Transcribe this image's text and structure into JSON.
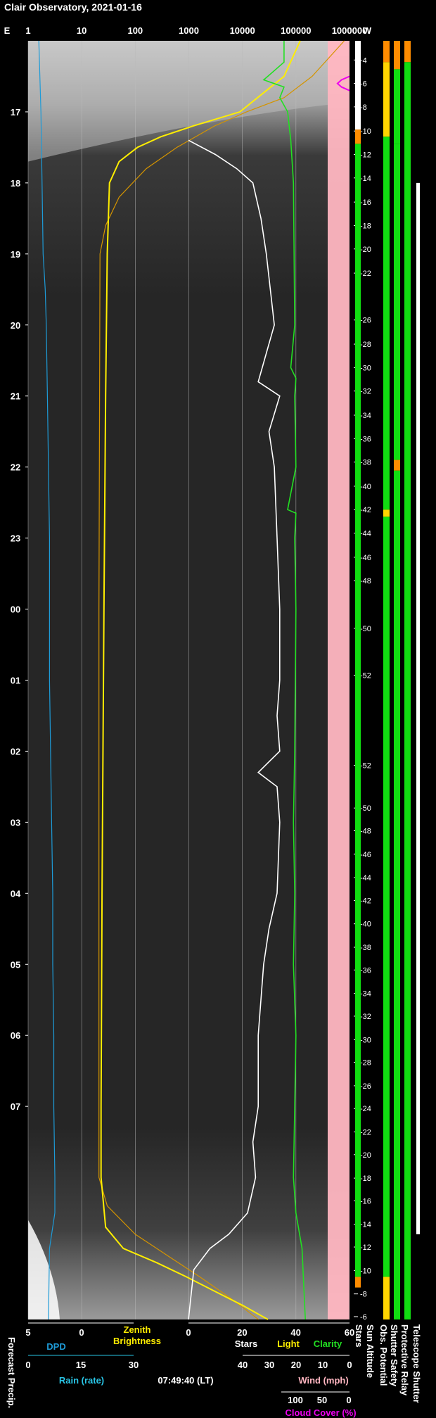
{
  "title": "Clair Observatory, 2021-01-16",
  "colors": {
    "dpd": "#1e9bd7",
    "rain": "#29c5e6",
    "brightness": "#ffee00",
    "light": "#ffee00",
    "clarity": "#22e022",
    "stars": "#ffffff",
    "wind": "#ffb6c1",
    "cloud": "#ee00ee",
    "green": "#11dd11",
    "orange": "#ff8c00",
    "yellow": "#ffd400"
  },
  "chart_data": {
    "type": "line",
    "compass": {
      "east": "E",
      "west": "W"
    },
    "top_axis": {
      "scale": "log",
      "ticks": [
        "1",
        "10",
        "100",
        "1000",
        "10000",
        "100000",
        "1000000"
      ]
    },
    "time_labels": [
      "17",
      "18",
      "19",
      "20",
      "21",
      "22",
      "23",
      "00",
      "01",
      "02",
      "03",
      "04",
      "05",
      "06",
      "07"
    ],
    "sun_altitude_ticks": [
      {
        "t": 16.27,
        "v": "-4"
      },
      {
        "t": 16.6,
        "v": "-6"
      },
      {
        "t": 16.93,
        "v": "-8"
      },
      {
        "t": 17.27,
        "v": "-10"
      },
      {
        "t": 17.6,
        "v": "-12"
      },
      {
        "t": 17.93,
        "v": "-14"
      },
      {
        "t": 18.27,
        "v": "-16"
      },
      {
        "t": 18.6,
        "v": "-18"
      },
      {
        "t": 18.93,
        "v": "-20"
      },
      {
        "t": 19.27,
        "v": "-22"
      },
      {
        "t": 19.93,
        "v": "-26"
      },
      {
        "t": 20.27,
        "v": "-28"
      },
      {
        "t": 20.6,
        "v": "-30"
      },
      {
        "t": 20.93,
        "v": "-32"
      },
      {
        "t": 21.27,
        "v": "-34"
      },
      {
        "t": 21.6,
        "v": "-36"
      },
      {
        "t": 21.93,
        "v": "-38"
      },
      {
        "t": 22.27,
        "v": "-40"
      },
      {
        "t": 22.6,
        "v": "-42"
      },
      {
        "t": 22.93,
        "v": "-44"
      },
      {
        "t": 23.27,
        "v": "-46"
      },
      {
        "t": 23.6,
        "v": "-48"
      },
      {
        "t": 24.27,
        "v": "-50"
      },
      {
        "t": 24.93,
        "v": "-52"
      },
      {
        "t": 26.2,
        "v": "-52"
      },
      {
        "t": 26.8,
        "v": "-50"
      },
      {
        "t": 27.12,
        "v": "-48"
      },
      {
        "t": 27.45,
        "v": "-46"
      },
      {
        "t": 27.78,
        "v": "-44"
      },
      {
        "t": 28.1,
        "v": "-42"
      },
      {
        "t": 28.43,
        "v": "-40"
      },
      {
        "t": 28.76,
        "v": "-38"
      },
      {
        "t": 29.08,
        "v": "-36"
      },
      {
        "t": 29.41,
        "v": "-34"
      },
      {
        "t": 29.73,
        "v": "-32"
      },
      {
        "t": 30.06,
        "v": "-30"
      },
      {
        "t": 30.38,
        "v": "-28"
      },
      {
        "t": 30.71,
        "v": "-26"
      },
      {
        "t": 31.03,
        "v": "-24"
      },
      {
        "t": 31.36,
        "v": "-22"
      },
      {
        "t": 31.68,
        "v": "-20"
      },
      {
        "t": 32.01,
        "v": "-18"
      },
      {
        "t": 32.33,
        "v": "-16"
      },
      {
        "t": 32.66,
        "v": "-14"
      },
      {
        "t": 32.98,
        "v": "-12"
      },
      {
        "t": 33.31,
        "v": "-10"
      },
      {
        "t": 33.64,
        "v": "-8"
      },
      {
        "t": 33.96,
        "v": "-6"
      }
    ],
    "time_range": [
      16.0,
      34.0
    ],
    "series": [
      {
        "name": "DPD",
        "unit": "scale 5..0",
        "t": [
          16.0,
          17.0,
          18.0,
          19.0,
          19.5,
          20.0,
          21.0,
          22.0,
          23.0,
          24.0,
          25.0,
          26.0,
          27.0,
          28.0,
          29.0,
          30.0,
          31.0,
          32.0,
          32.5,
          33.0,
          34.0
        ],
        "v": [
          4.0,
          3.8,
          3.7,
          3.6,
          3.4,
          3.3,
          3.2,
          3.1,
          3.0,
          3.0,
          3.0,
          2.9,
          2.8,
          2.7,
          2.7,
          2.6,
          2.6,
          2.5,
          2.5,
          3.0,
          3.1
        ]
      },
      {
        "name": "Zenith Brightness",
        "unit": "log",
        "t": [
          16.0,
          16.5,
          17.0,
          17.2,
          17.35,
          17.5,
          17.7,
          18.0,
          19.0,
          21.0,
          24.0,
          28.0,
          31.0,
          32.0,
          32.7,
          33.0,
          33.2,
          33.4,
          33.6,
          33.8,
          34.0
        ],
        "v": [
          120000,
          60000,
          9000,
          1200,
          300,
          110,
          50,
          33,
          30,
          28,
          26,
          24,
          23,
          23,
          28,
          60,
          250,
          900,
          3000,
          10000,
          30000
        ]
      },
      {
        "name": "Light",
        "unit": "log",
        "t": [
          16.0,
          16.5,
          16.8,
          17.0,
          17.2,
          17.5,
          17.8,
          18.2,
          18.6,
          19.0,
          24.0,
          32.0,
          32.4,
          32.8,
          33.1,
          33.4,
          33.7,
          34.0
        ],
        "v": [
          800000,
          200000,
          60000,
          12000,
          3000,
          600,
          160,
          50,
          28,
          22,
          21,
          21,
          30,
          100,
          400,
          1600,
          6000,
          20000
        ]
      },
      {
        "name": "Clarity",
        "unit": "log",
        "t": [
          16.0,
          16.3,
          16.55,
          16.65,
          16.8,
          17.0,
          17.4,
          18.0,
          20.0,
          20.6,
          20.75,
          21.0,
          22.0,
          22.6,
          22.65,
          23.0,
          24.0,
          26.0,
          27.0,
          28.0,
          29.0,
          30.0,
          31.0,
          32.0,
          32.5,
          33.0,
          34.0
        ],
        "v": [
          60000,
          60000,
          25000,
          60000,
          50000,
          70000,
          80000,
          90000,
          95000,
          80000,
          100000,
          95000,
          100000,
          70000,
          100000,
          95000,
          100000,
          95000,
          90000,
          95000,
          90000,
          100000,
          95000,
          90000,
          100000,
          130000,
          150000
        ]
      },
      {
        "name": "Stars",
        "unit": "0..60",
        "t": [
          16.0,
          17.4,
          17.6,
          17.8,
          18.0,
          18.5,
          19.0,
          20.0,
          20.8,
          21.0,
          21.5,
          22.0,
          23.0,
          24.0,
          25.0,
          25.5,
          26.0,
          26.3,
          26.5,
          27.0,
          28.0,
          28.5,
          29.0,
          30.0,
          31.0,
          31.5,
          32.0,
          32.5,
          32.8,
          33.0,
          33.3,
          34.0
        ],
        "v": [
          null,
          0,
          10,
          18,
          24,
          27,
          29,
          32,
          26,
          34,
          30,
          32,
          33,
          34,
          34,
          33,
          34,
          26,
          33,
          34,
          33,
          30,
          28,
          26,
          26,
          24,
          25,
          22,
          15,
          8,
          2,
          0
        ]
      },
      {
        "name": "Wind",
        "unit": "mph 40..0",
        "t": [
          16.0,
          17.0,
          17.5,
          18.0,
          20.0,
          22.0,
          24.0,
          26.0,
          28.0,
          30.0,
          32.0,
          34.0
        ],
        "v": [
          15,
          12,
          8,
          5,
          4,
          3,
          2,
          2,
          3,
          4,
          5,
          6
        ]
      },
      {
        "name": "Cloud Cover",
        "unit": "% 100..0",
        "t": [
          16.5,
          16.55,
          16.6,
          16.65,
          16.7
        ],
        "v": [
          0,
          20,
          30,
          20,
          0
        ]
      }
    ],
    "status_bars": [
      {
        "name": "Stars",
        "segments": [
          {
            "from": 16.0,
            "to": 17.25,
            "color": "white"
          },
          {
            "from": 17.25,
            "to": 17.45,
            "color": "orange"
          },
          {
            "from": 17.45,
            "to": 33.4,
            "color": "green"
          },
          {
            "from": 33.4,
            "to": 33.55,
            "color": "orange"
          }
        ]
      },
      {
        "name": "Obs. Potential",
        "segments": [
          {
            "from": 16.0,
            "to": 16.3,
            "color": "orange"
          },
          {
            "from": 16.3,
            "to": 17.35,
            "color": "yellow"
          },
          {
            "from": 17.35,
            "to": 22.6,
            "color": "green"
          },
          {
            "from": 22.6,
            "to": 22.7,
            "color": "yellow"
          },
          {
            "from": 22.7,
            "to": 33.4,
            "color": "green"
          },
          {
            "from": 33.4,
            "to": 34.0,
            "color": "yellow"
          }
        ]
      },
      {
        "name": "Shutter Safety",
        "segments": [
          {
            "from": 16.0,
            "to": 16.4,
            "color": "orange"
          },
          {
            "from": 16.4,
            "to": 17.45,
            "color": "green"
          },
          {
            "from": 17.45,
            "to": 21.9,
            "color": "green"
          },
          {
            "from": 21.9,
            "to": 22.05,
            "color": "orange"
          },
          {
            "from": 22.05,
            "to": 34.0,
            "color": "green"
          }
        ]
      },
      {
        "name": "Protective Relay",
        "segments": [
          {
            "from": 16.0,
            "to": 16.3,
            "color": "orange"
          },
          {
            "from": 16.3,
            "to": 34.0,
            "color": "green"
          }
        ]
      },
      {
        "name": "Telescope Shutter",
        "segments": [
          {
            "from": 18.0,
            "to": 32.8,
            "color": "white"
          }
        ]
      }
    ],
    "bottom_scales": {
      "forecast_precip_label": "Forecast Precip.",
      "dpd": {
        "label": "DPD",
        "ticks": [
          "5",
          "0"
        ]
      },
      "rain": {
        "label": "Rain (rate)",
        "ticks": [
          "0",
          "15",
          "30"
        ]
      },
      "zenith": {
        "label_line1": "Zenith",
        "label_line2": "Brightness"
      },
      "stars_scale": {
        "ticks": [
          "0",
          "20",
          "40",
          "60"
        ],
        "stars_label": "Stars",
        "light_label": "Light",
        "clarity_label": "Clarity"
      },
      "wind": {
        "label": "Wind (mph)",
        "ticks": [
          "40",
          "30",
          "20",
          "10",
          "0"
        ]
      },
      "cloud": {
        "label": "Cloud Cover (%)",
        "ticks": [
          "100",
          "50",
          "0"
        ]
      },
      "time_readout": "07:49:40 (LT)",
      "row_labels": [
        "Stars",
        "Sun Altitude",
        "Obs. Potential",
        "Shutter Safety",
        "Protective Relay",
        "Telescope Shutter"
      ]
    }
  }
}
